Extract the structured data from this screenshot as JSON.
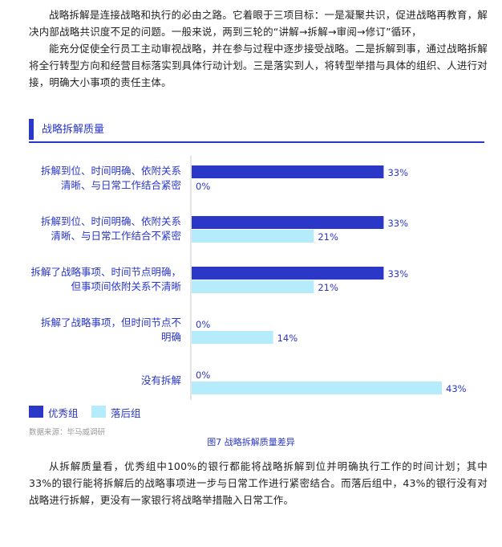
{
  "paragraphs": {
    "intro": "战略拆解是连接战略和执行的必由之路。它着眼于三项目标：一是凝聚共识，促进战略再教育，解决内部战略共识度不足的问题。一般来说，两到三轮的“讲解→拆解→审阅→修订”循环，",
    "second": "能充分促使全行员工主动审视战略，并在参与过程中逐步接受战略。二是拆解到事，通过战略拆解将全行转型方向和经营目标落实到具体行动计划。三是落实到人，将转型举措与具体的组织、人进行对接，明确大小事项的责任主体。",
    "conclusion": "从拆解质量看，优秀组中100%的银行都能将战略拆解到位并明确执行工作的时间计划；其中33%的银行能将拆解后的战略事项进一步与日常工作进行紧密结合。而落后组中，43%的银行没有对战略进行拆解，更没有一家银行将战略举措融入日常工作。"
  },
  "section_title": "战略拆解质量",
  "source": "数据来源：毕马威调研",
  "caption": "图7 战略拆解质量差异",
  "colors": {
    "excellent": "#2a37c7",
    "lagging": "#b5ecfb",
    "accent": "#2a37c7"
  },
  "chart_data": {
    "type": "bar",
    "orientation": "horizontal",
    "categories": [
      [
        "拆解到位、时间明确、依附关系",
        "清晰、与日常工作结合紧密"
      ],
      [
        "拆解到位、时间明确、依附关系",
        "清晰、与日常工作结合不紧密"
      ],
      [
        "拆解了战略事项、时间节点明确，",
        "但事项间依附关系不清晰"
      ],
      [
        "拆解了战略事项，但时间节点不",
        "明确"
      ],
      [
        "没有拆解"
      ]
    ],
    "series": [
      {
        "name": "优秀组",
        "values": [
          33,
          33,
          33,
          0,
          0
        ],
        "labels": [
          "33%",
          "33%",
          "33%",
          "0%",
          "0%"
        ]
      },
      {
        "name": "落后组",
        "values": [
          0,
          21,
          21,
          14,
          43
        ],
        "labels": [
          "0%",
          "21%",
          "21%",
          "14%",
          "43%"
        ]
      }
    ],
    "xlim": [
      0,
      43
    ],
    "legend": "bottom-left"
  }
}
